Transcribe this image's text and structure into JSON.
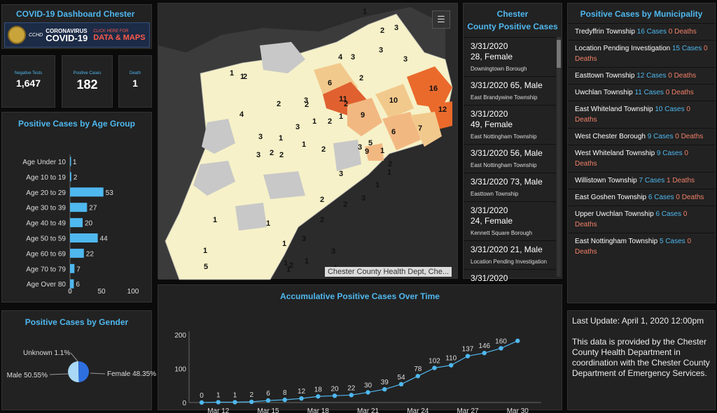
{
  "header": {
    "title": "COVID-19 Dashboard Chester",
    "banner": {
      "agency": "CCHD",
      "line1": "CORONAVIRUS",
      "line2": "COVID-19",
      "click_small": "CLICK HERE FOR",
      "click_big": "DATA & MAPS"
    }
  },
  "stats": [
    {
      "label": "Negative Tests",
      "value": "1,647"
    },
    {
      "label": "Positive Cases",
      "value": "182"
    },
    {
      "label": "Death",
      "value": "1"
    }
  ],
  "age_panel": {
    "title": "Positive Cases by Age Group",
    "chart_data": {
      "type": "bar",
      "orientation": "horizontal",
      "categories": [
        "Age Under 10",
        "Age 10 to 19",
        "Age 20 to 29",
        "Age 30 to 39",
        "Age 40 to 49",
        "Age 50 to 59",
        "Age 60 to 69",
        "Age 70 to 79",
        "Age Over 80"
      ],
      "values": [
        1,
        2,
        53,
        27,
        20,
        44,
        22,
        7,
        6
      ],
      "xlim": [
        0,
        100
      ],
      "xticks": [
        "0",
        "50",
        "100"
      ],
      "color": "#4fb8ef"
    }
  },
  "gender_panel": {
    "title": "Positive Cases by Gender",
    "chart_data": {
      "type": "pie",
      "slices": [
        {
          "label": "Unknown",
          "value": 1.1,
          "text": "Unknown 1.1%",
          "color": "#2a5fc4"
        },
        {
          "label": "Female",
          "value": 48.35,
          "text": "Female 48.35%",
          "color": "#2e6fe0"
        },
        {
          "label": "Male",
          "value": 50.55,
          "text": "Male 50.55%",
          "color": "#a8d8f5"
        }
      ]
    }
  },
  "map": {
    "attribution": "Chester County Health Dept, Che...",
    "legend_icon": "list-icon",
    "labels": [
      "1",
      "2",
      "3",
      "3",
      "1",
      "3",
      "4",
      "2",
      "6",
      "3",
      "3",
      "2",
      "11",
      "9",
      "10",
      "16",
      "12",
      "2",
      "3",
      "1",
      "6",
      "7",
      "4",
      "2",
      "2",
      "1",
      "3",
      "1",
      "2",
      "1",
      "2",
      "5",
      "9",
      "1",
      "1",
      "2",
      "3",
      "2",
      "3",
      "3",
      "2",
      "2",
      "2",
      "3",
      "1",
      "1",
      "1",
      "3",
      "1",
      "5",
      "1",
      "1",
      "2",
      "3",
      "1",
      "1",
      "1",
      "2",
      "1"
    ]
  },
  "cases_panel": {
    "title_line1": "Chester",
    "title_line2": "County Positive Cases",
    "items": [
      {
        "line1": "3/31/2020",
        "line2": "28, Female",
        "town": "Downingtown Borough"
      },
      {
        "line1": "3/31/2020  65, Male",
        "line2": "",
        "town": "East Brandywine Township"
      },
      {
        "line1": "3/31/2020",
        "line2": "49, Female",
        "town": "East Nottingham Township"
      },
      {
        "line1": "3/31/2020  56, Male",
        "line2": "",
        "town": "East Nottingham Township"
      },
      {
        "line1": "3/31/2020  73, Male",
        "line2": "",
        "town": "Easttown Township"
      },
      {
        "line1": "3/31/2020",
        "line2": "24, Female",
        "town": "Kennett Square Borough"
      },
      {
        "line1": "3/31/2020  21, Male",
        "line2": "",
        "town": "Location Pending Investigation"
      },
      {
        "line1": "3/31/2020",
        "line2": "",
        "town": ""
      }
    ]
  },
  "muni_panel": {
    "title": "Positive Cases by Municipality",
    "items": [
      {
        "name": "Tredyffrin Township",
        "cases": "16 Cases",
        "deaths": "0 Deaths"
      },
      {
        "name": "Location Pending Investigation",
        "cases": "15 Cases",
        "deaths": "0 Deaths"
      },
      {
        "name": "Easttown Township",
        "cases": "12 Cases",
        "deaths": "0 Deaths"
      },
      {
        "name": "Uwchlan Township",
        "cases": "11 Cases",
        "deaths": "0 Deaths"
      },
      {
        "name": "East Whiteland Township",
        "cases": "10 Cases",
        "deaths": "0 Deaths"
      },
      {
        "name": "West Chester Borough",
        "cases": "9 Cases",
        "deaths": "0 Deaths"
      },
      {
        "name": "West Whiteland Township",
        "cases": "9 Cases",
        "deaths": "0 Deaths"
      },
      {
        "name": "Willistown Township",
        "cases": "7 Cases",
        "deaths": "1 Deaths"
      },
      {
        "name": "East Goshen Township",
        "cases": "6 Cases",
        "deaths": "0 Deaths"
      },
      {
        "name": "Upper Uwchlan Township",
        "cases": "6 Cases",
        "deaths": "0 Deaths"
      },
      {
        "name": "East Nottingham Township",
        "cases": "5 Cases",
        "deaths": "0 Deaths"
      }
    ]
  },
  "timeline_panel": {
    "title": "Accumulative Positive Cases Over Time",
    "chart_data": {
      "type": "line",
      "x": [
        "Mar 11",
        "Mar 12",
        "Mar 13",
        "Mar 14",
        "Mar 15",
        "Mar 16",
        "Mar 17",
        "Mar 18",
        "Mar 19",
        "Mar 20",
        "Mar 21",
        "Mar 22",
        "Mar 23",
        "Mar 24",
        "Mar 25",
        "Mar 26",
        "Mar 27",
        "Mar 28",
        "Mar 29",
        "Mar 30",
        "Mar 31"
      ],
      "values": [
        0,
        1,
        1,
        2,
        6,
        8,
        12,
        18,
        20,
        22,
        30,
        39,
        54,
        78,
        102,
        110,
        137,
        146,
        160,
        182,
        null
      ],
      "point_labels": [
        "0",
        "1",
        "1",
        "2",
        "6",
        "8",
        "12",
        "18",
        "20",
        "22",
        "30",
        "39",
        "54",
        "78",
        "102",
        "110",
        "137",
        "146",
        "160",
        "",
        ""
      ],
      "xticks": [
        "Mar 12",
        "Mar 15",
        "Mar 18",
        "Mar 21",
        "Mar 24",
        "Mar 27",
        "Mar 30"
      ],
      "yticks": [
        "0",
        "100",
        "200"
      ],
      "ylim": [
        0,
        200
      ],
      "color": "#4fb8ef"
    }
  },
  "update_panel": {
    "last_update": "Last Update: April 1, 2020 12:00pm",
    "note": "This data is provided by the Chester County Health Department in coordination with the Chester County Department of Emergency Services."
  }
}
